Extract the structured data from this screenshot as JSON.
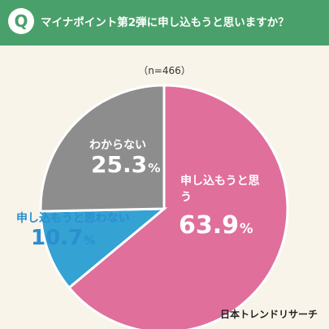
{
  "header": {
    "badge": "Q",
    "question": "マイナポイント第2弾に申し込もうと思いますか？"
  },
  "sample_size": "（n=466）",
  "brand": "日本トレンドリサーチ",
  "colors": {
    "header": "#4aa06a",
    "yes": "#e06f9b",
    "unsure": "#8d8d8d",
    "no": "#35a2d4"
  },
  "chart_data": {
    "type": "pie",
    "title": "",
    "slices": [
      {
        "label": "申し込もうと思う",
        "value": 63.9,
        "display": "63.9",
        "unit": "%",
        "color": "#e06f9b"
      },
      {
        "label": "申し込もうと思わない",
        "value": 10.7,
        "display": "10.7",
        "unit": "%",
        "color": "#35a2d4"
      },
      {
        "label": "わからない",
        "value": 25.3,
        "display": "25.3",
        "unit": "%",
        "color": "#8d8d8d"
      }
    ],
    "start_angle_deg": 0,
    "direction": "clockwise"
  }
}
